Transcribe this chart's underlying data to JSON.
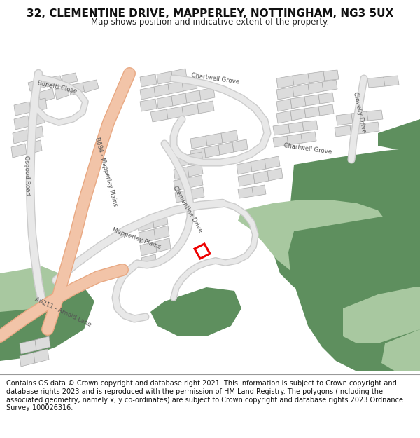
{
  "title": "32, CLEMENTINE DRIVE, MAPPERLEY, NOTTINGHAM, NG3 5UX",
  "subtitle": "Map shows position and indicative extent of the property.",
  "footer": "Contains OS data © Crown copyright and database right 2021. This information is subject to Crown copyright and database rights 2023 and is reproduced with the permission of HM Land Registry. The polygons (including the associated geometry, namely x, y co-ordinates) are subject to Crown copyright and database rights 2023 Ordnance Survey 100026316.",
  "map_bg": "#f8f8f8",
  "major_road_color": "#f2c4a8",
  "major_road_outline": "#e8a882",
  "road_color": "#e8e8e8",
  "road_outline": "#cccccc",
  "green_dark": "#5e8f5e",
  "green_light": "#a8c8a0",
  "building_fill": "#dcdcdc",
  "building_edge": "#aaaaaa",
  "highlight_color": "#ee0000",
  "label_color": "#555555",
  "title_fontsize": 11,
  "subtitle_fontsize": 8.5,
  "footer_fontsize": 7.0
}
